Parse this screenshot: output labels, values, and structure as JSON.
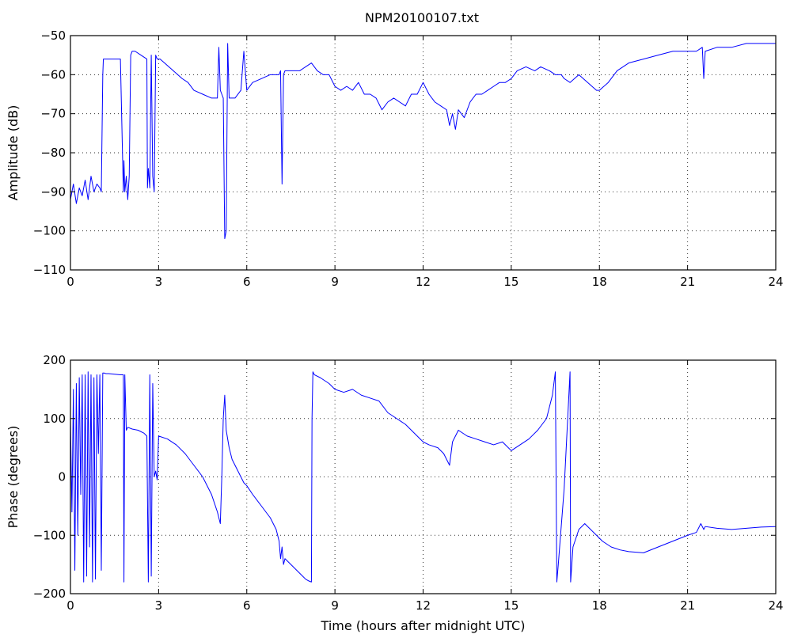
{
  "chart_data": [
    {
      "type": "line",
      "title": "NPM20100107.txt",
      "xlabel": "",
      "ylabel": "Amplitude (dB)",
      "xlim": [
        0,
        24
      ],
      "ylim": [
        -110,
        -50
      ],
      "xticks": [
        0,
        3,
        6,
        9,
        12,
        15,
        18,
        21,
        24
      ],
      "yticks": [
        -110,
        -100,
        -90,
        -80,
        -70,
        -60,
        -50
      ],
      "grid": true,
      "color": "#0000ff",
      "series": [
        {
          "x": [
            0,
            0.1,
            0.2,
            0.3,
            0.4,
            0.5,
            0.6,
            0.7,
            0.8,
            0.9,
            1.0,
            1.05,
            1.1,
            1.12,
            1.15,
            1.2,
            1.3,
            1.5,
            1.7,
            1.8,
            1.82,
            1.85,
            1.9,
            1.95,
            2.0,
            2.05,
            2.1,
            2.2,
            2.4,
            2.6,
            2.62,
            2.65,
            2.7,
            2.75,
            2.8,
            2.85,
            2.9,
            2.95,
            3.0,
            3.05,
            3.2,
            3.5,
            3.8,
            4.0,
            4.2,
            4.5,
            4.8,
            5.0,
            5.05,
            5.1,
            5.15,
            5.2,
            5.25,
            5.3,
            5.35,
            5.4,
            5.5,
            5.6,
            5.8,
            5.9,
            6.0,
            6.2,
            6.5,
            6.8,
            7.0,
            7.1,
            7.15,
            7.2,
            7.25,
            7.3,
            7.5,
            7.8,
            8.0,
            8.2,
            8.4,
            8.6,
            8.8,
            9.0,
            9.2,
            9.4,
            9.6,
            9.8,
            10.0,
            10.2,
            10.4,
            10.6,
            10.8,
            11.0,
            11.2,
            11.4,
            11.6,
            11.8,
            12.0,
            12.2,
            12.4,
            12.6,
            12.8,
            12.9,
            13.0,
            13.1,
            13.2,
            13.4,
            13.6,
            13.8,
            14.0,
            14.2,
            14.4,
            14.6,
            14.8,
            15.0,
            15.2,
            15.5,
            15.8,
            16.0,
            16.3,
            16.5,
            16.7,
            16.8,
            17.0,
            17.3,
            17.6,
            17.9,
            18.0,
            18.3,
            18.6,
            19.0,
            19.5,
            20.0,
            20.5,
            21.0,
            21.3,
            21.5,
            21.55,
            21.6,
            22.0,
            22.5,
            23.0,
            23.5,
            24.0
          ],
          "y": [
            -92,
            -88,
            -93,
            -89,
            -91,
            -87,
            -92,
            -86,
            -90,
            -88,
            -89,
            -90,
            -60,
            -56,
            -56,
            -56,
            -56,
            -56,
            -56,
            -90,
            -82,
            -90,
            -86,
            -92,
            -86,
            -55,
            -54,
            -54,
            -55,
            -56,
            -89,
            -84,
            -89,
            -55,
            -86,
            -90,
            -55,
            -56,
            -56,
            -56,
            -57,
            -59,
            -61,
            -62,
            -64,
            -65,
            -66,
            -66,
            -53,
            -64,
            -65,
            -66,
            -102,
            -100,
            -52,
            -66,
            -66,
            -66,
            -64,
            -54,
            -64,
            -62,
            -61,
            -60,
            -60,
            -60,
            -59,
            -88,
            -60,
            -59,
            -59,
            -59,
            -58,
            -57,
            -59,
            -60,
            -60,
            -63,
            -64,
            -63,
            -64,
            -62,
            -65,
            -65,
            -66,
            -69,
            -67,
            -66,
            -67,
            -68,
            -65,
            -65,
            -62,
            -65,
            -67,
            -68,
            -69,
            -73,
            -70,
            -74,
            -69,
            -71,
            -67,
            -65,
            -65,
            -64,
            -63,
            -62,
            -62,
            -61,
            -59,
            -58,
            -59,
            -58,
            -59,
            -60,
            -60,
            -61,
            -62,
            -60,
            -62,
            -64,
            -64,
            -62,
            -59,
            -57,
            -56,
            -55,
            -54,
            -54,
            -54,
            -53,
            -61,
            -54,
            -53,
            -53,
            -52,
            -52,
            -52
          ]
        }
      ]
    },
    {
      "type": "line",
      "title": "",
      "xlabel": "Time (hours after midnight UTC)",
      "ylabel": "Phase (degrees)",
      "xlim": [
        0,
        24
      ],
      "ylim": [
        -200,
        200
      ],
      "xticks": [
        0,
        3,
        6,
        9,
        12,
        15,
        18,
        21,
        24
      ],
      "yticks": [
        -200,
        -100,
        0,
        100,
        200
      ],
      "grid": true,
      "color": "#0000ff",
      "series": [
        {
          "x": [
            0,
            0.05,
            0.1,
            0.15,
            0.2,
            0.25,
            0.3,
            0.35,
            0.4,
            0.45,
            0.5,
            0.55,
            0.6,
            0.65,
            0.7,
            0.75,
            0.8,
            0.85,
            0.9,
            0.95,
            1.0,
            1.05,
            1.1,
            1.15,
            1.2,
            1.3,
            1.5,
            1.7,
            1.8,
            1.82,
            1.85,
            1.9,
            1.95,
            2.0,
            2.1,
            2.3,
            2.5,
            2.6,
            2.65,
            2.7,
            2.75,
            2.8,
            2.85,
            2.9,
            2.95,
            3.0,
            3.3,
            3.6,
            3.9,
            4.2,
            4.5,
            4.8,
            5.0,
            5.1,
            5.15,
            5.2,
            5.25,
            5.3,
            5.4,
            5.5,
            5.7,
            5.9,
            6.0,
            6.2,
            6.5,
            6.8,
            7.0,
            7.1,
            7.15,
            7.2,
            7.25,
            7.3,
            7.5,
            7.7,
            7.9,
            8.0,
            8.1,
            8.2,
            8.22,
            8.25,
            8.3,
            8.5,
            8.8,
            9.0,
            9.3,
            9.6,
            9.9,
            10.2,
            10.5,
            10.8,
            11.1,
            11.4,
            11.6,
            11.8,
            12.0,
            12.2,
            12.5,
            12.7,
            12.8,
            12.9,
            13.0,
            13.2,
            13.5,
            13.8,
            14.1,
            14.4,
            14.7,
            15.0,
            15.3,
            15.6,
            15.9,
            16.2,
            16.4,
            16.5,
            16.55,
            16.6,
            16.8,
            17.0,
            17.02,
            17.1,
            17.3,
            17.5,
            17.7,
            17.9,
            18.1,
            18.4,
            18.7,
            19.0,
            19.5,
            20.0,
            20.5,
            21.0,
            21.3,
            21.45,
            21.5,
            21.55,
            21.6,
            22.0,
            22.5,
            23.0,
            23.5,
            24.0
          ],
          "y": [
            100,
            -60,
            150,
            -160,
            160,
            -100,
            170,
            -30,
            175,
            -180,
            175,
            -170,
            180,
            -120,
            175,
            -180,
            170,
            -175,
            175,
            40,
            175,
            -160,
            178,
            178,
            177,
            177,
            176,
            175,
            175,
            -180,
            175,
            80,
            85,
            84,
            82,
            80,
            75,
            70,
            -180,
            175,
            -170,
            160,
            0,
            10,
            -5,
            70,
            65,
            55,
            40,
            20,
            0,
            -30,
            -60,
            -80,
            0,
            100,
            140,
            80,
            50,
            30,
            10,
            -10,
            -15,
            -30,
            -50,
            -70,
            -90,
            -110,
            -140,
            -120,
            -150,
            -140,
            -150,
            -160,
            -170,
            -175,
            -178,
            -180,
            100,
            180,
            175,
            170,
            160,
            150,
            145,
            150,
            140,
            135,
            130,
            110,
            100,
            90,
            80,
            70,
            60,
            55,
            50,
            40,
            30,
            20,
            60,
            80,
            70,
            65,
            60,
            55,
            60,
            45,
            55,
            65,
            80,
            100,
            140,
            180,
            -180,
            -150,
            -20,
            180,
            -180,
            -120,
            -90,
            -80,
            -90,
            -100,
            -110,
            -120,
            -125,
            -128,
            -130,
            -120,
            -110,
            -100,
            -95,
            -80,
            -85,
            -90,
            -85,
            -88,
            -90,
            -88,
            -86,
            -85
          ]
        }
      ]
    }
  ]
}
